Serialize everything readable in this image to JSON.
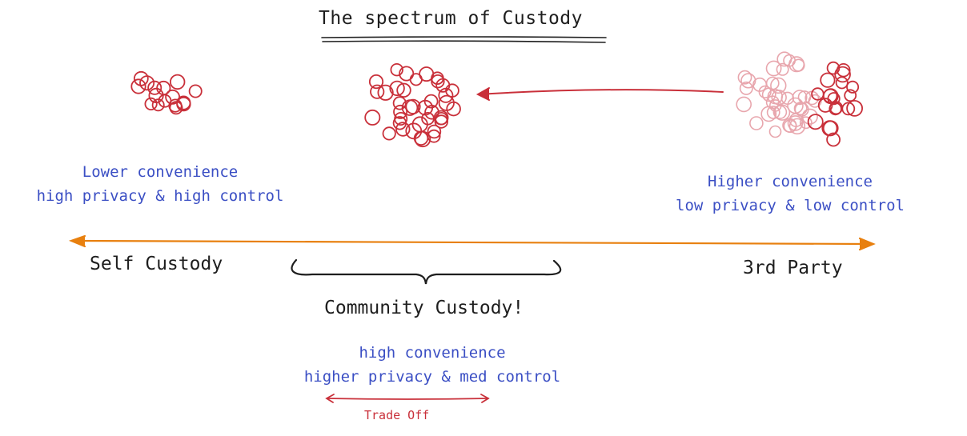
{
  "title": "The spectrum of Custody",
  "left_note": {
    "line1": "Lower convenience",
    "line2": "high privacy & high control"
  },
  "right_note": {
    "line1": "Higher convenience",
    "line2": "low privacy & low control"
  },
  "axis": {
    "left_label": "Self Custody",
    "right_label": "3rd Party",
    "color": "#e8800f"
  },
  "middle": {
    "label": "Community Custody!",
    "line1": "high convenience",
    "line2": "higher privacy & med control",
    "trade_off": "Trade Off"
  },
  "colors": {
    "ink": "#1e1e1e",
    "blue_text": "#3b4fc4",
    "cluster_red": "#c9303a"
  }
}
